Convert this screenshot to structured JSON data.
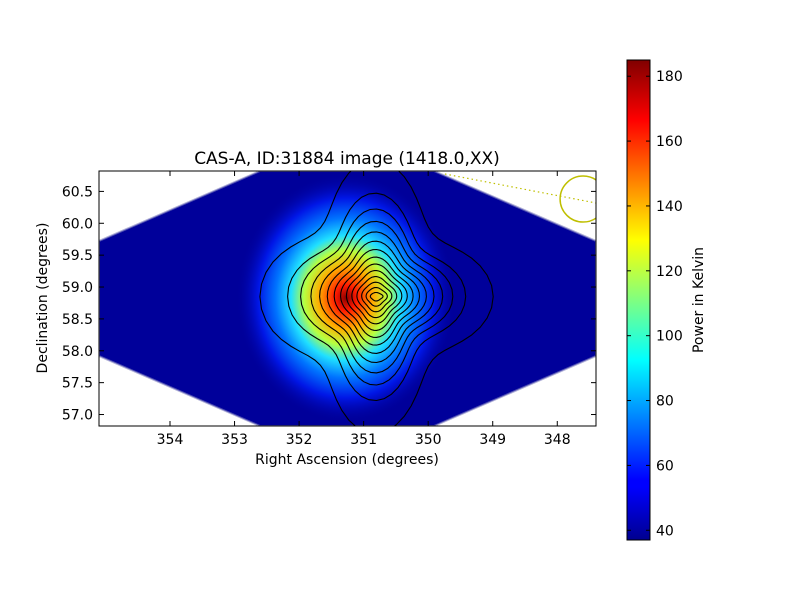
{
  "chart_data": {
    "type": "heatmap",
    "title": "CAS-A, ID:31884 image (1418.0,XX)",
    "xlabel": "Right Ascension (degrees)",
    "ylabel": "Declination (degrees)",
    "colorbar_label": "Power in Kelvin",
    "x_range": [
      355.1,
      347.4
    ],
    "y_range": [
      56.82,
      60.82
    ],
    "x_ticks": [
      354,
      353,
      352,
      351,
      350,
      349,
      348
    ],
    "y_ticks": [
      57.0,
      57.5,
      58.0,
      58.5,
      59.0,
      59.5,
      60.0,
      60.5
    ],
    "x_tick_labels": [
      "354",
      "353",
      "352",
      "351",
      "350",
      "349",
      "348"
    ],
    "y_tick_labels": [
      "57.0",
      "57.5",
      "58.0",
      "58.5",
      "59.0",
      "59.5",
      "60.0",
      "60.5"
    ],
    "colorbar_range": [
      37,
      185
    ],
    "colorbar_ticks": [
      40,
      60,
      80,
      100,
      120,
      140,
      160,
      180
    ],
    "colorbar_tick_labels": [
      "40",
      "60",
      "80",
      "100",
      "120",
      "140",
      "160",
      "180"
    ],
    "colormap": "jet",
    "peak": {
      "ra": 350.8,
      "dec": 58.85,
      "value": 183
    },
    "background_value": 38,
    "contour_count": 14,
    "beam_marker": {
      "ra": 347.6,
      "dec": 60.38,
      "color": "#bfbf00"
    },
    "grid": false
  }
}
